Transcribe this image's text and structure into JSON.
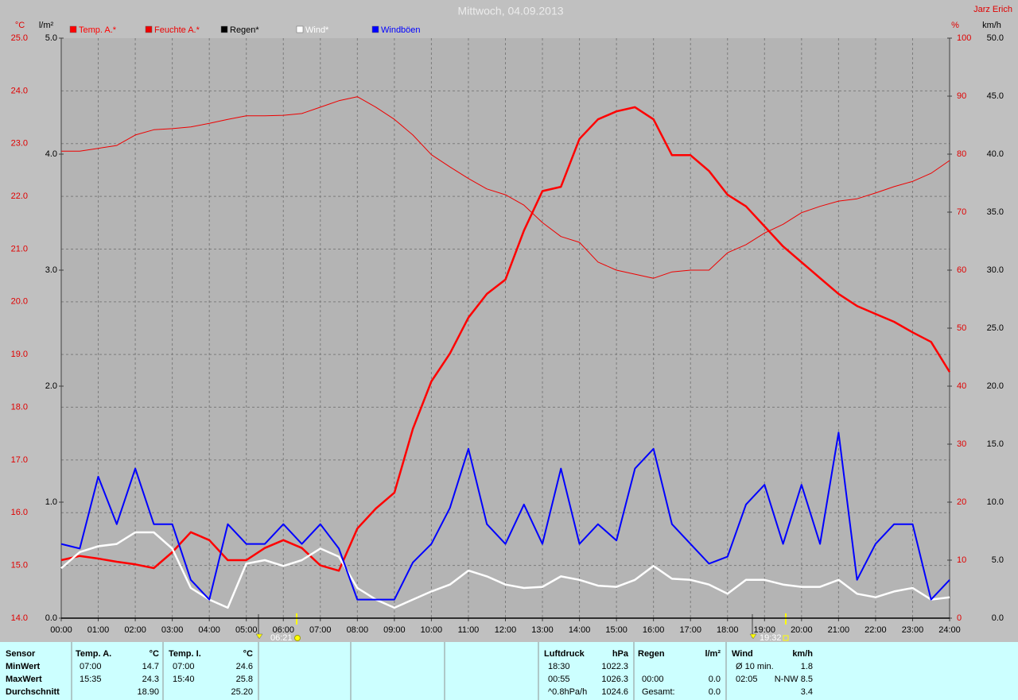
{
  "chart_data": {
    "type": "line",
    "title": "Mittwoch, 04.09.2013",
    "author": "Jarz Erich",
    "y_unit": "°C",
    "y2_unit": "%",
    "y3_unit": "l/m²",
    "y4_unit": "km/h",
    "xlim": [
      0,
      24
    ],
    "xticks": [
      {
        "value": 0,
        "label": "00:00"
      },
      {
        "value": 1,
        "label": "01:00"
      },
      {
        "value": 2,
        "label": "02:00"
      },
      {
        "value": 3,
        "label": "03:00"
      },
      {
        "value": 4,
        "label": "04:00"
      },
      {
        "value": 5,
        "label": "05:00"
      },
      {
        "value": 6,
        "label": "06:00"
      },
      {
        "value": 7,
        "label": "07:00"
      },
      {
        "value": 8,
        "label": "08:00"
      },
      {
        "value": 9,
        "label": "09:00"
      },
      {
        "value": 10,
        "label": "10:00"
      },
      {
        "value": 11,
        "label": "11:00"
      },
      {
        "value": 12,
        "label": "12:00"
      },
      {
        "value": 13,
        "label": "13:00"
      },
      {
        "value": 14,
        "label": "14:00"
      },
      {
        "value": 15,
        "label": "15:00"
      },
      {
        "value": 16,
        "label": "16:00"
      },
      {
        "value": 17,
        "label": "17:00"
      },
      {
        "value": 18,
        "label": "18:00"
      },
      {
        "value": 19,
        "label": "19:00"
      },
      {
        "value": 20,
        "label": "20:00"
      },
      {
        "value": 21,
        "label": "21:00"
      },
      {
        "value": 22,
        "label": "22:00"
      },
      {
        "value": 23,
        "label": "23:00"
      },
      {
        "value": 24,
        "label": "24:00"
      }
    ],
    "ylim": [
      14,
      25
    ],
    "yticks": [
      {
        "value": 14,
        "label": "14.0"
      },
      {
        "value": 15,
        "label": "15.0"
      },
      {
        "value": 16,
        "label": "16.0"
      },
      {
        "value": 17,
        "label": "17.0"
      },
      {
        "value": 18,
        "label": "18.0"
      },
      {
        "value": 19,
        "label": "19.0"
      },
      {
        "value": 20,
        "label": "20.0"
      },
      {
        "value": 21,
        "label": "21.0"
      },
      {
        "value": 22,
        "label": "22.0"
      },
      {
        "value": 23,
        "label": "23.0"
      },
      {
        "value": 24,
        "label": "24.0"
      },
      {
        "value": 25,
        "label": "25.0"
      }
    ],
    "y2lim": [
      0,
      100
    ],
    "y2ticks": [
      0,
      10,
      20,
      30,
      40,
      50,
      60,
      70,
      80,
      90,
      100
    ],
    "y3lim": [
      0,
      5
    ],
    "y3ticks": [
      {
        "value": 0,
        "label": "0.0"
      },
      {
        "value": 1,
        "label": "1.0"
      },
      {
        "value": 2,
        "label": "2.0"
      },
      {
        "value": 3,
        "label": "3.0"
      },
      {
        "value": 4,
        "label": "4.0"
      },
      {
        "value": 5,
        "label": "5.0"
      }
    ],
    "y4lim": [
      0,
      50
    ],
    "y4ticks": [
      {
        "value": 0,
        "label": "0.0"
      },
      {
        "value": 5,
        "label": "5.0"
      },
      {
        "value": 10,
        "label": "10.0"
      },
      {
        "value": 15,
        "label": "15.0"
      },
      {
        "value": 20,
        "label": "20.0"
      },
      {
        "value": 25,
        "label": "25.0"
      },
      {
        "value": 30,
        "label": "30.0"
      },
      {
        "value": 35,
        "label": "35.0"
      },
      {
        "value": 40,
        "label": "40.0"
      },
      {
        "value": 45,
        "label": "45.0"
      },
      {
        "value": 50,
        "label": "50.0"
      }
    ],
    "grid": true,
    "legend": "top",
    "x": [
      0,
      0.5,
      1,
      1.5,
      2,
      2.5,
      3,
      3.5,
      4,
      4.5,
      5,
      5.5,
      6,
      6.5,
      7,
      7.5,
      8,
      8.5,
      9,
      9.5,
      10,
      10.5,
      11,
      11.5,
      12,
      12.5,
      13,
      13.5,
      14,
      14.5,
      15,
      15.5,
      16,
      16.5,
      17,
      17.5,
      18,
      18.5,
      19,
      19.5,
      20,
      20.5,
      21,
      21.5,
      22,
      22.5,
      23,
      23.5,
      24
    ],
    "series": [
      {
        "name": "Temp. A.*",
        "color": "#ff0000",
        "axis": "y",
        "values": [
          15.1,
          15.18,
          15.13,
          15.07,
          15.02,
          14.95,
          15.25,
          15.63,
          15.48,
          15.1,
          15.1,
          15.33,
          15.48,
          15.33,
          15.0,
          14.9,
          15.7,
          16.08,
          16.38,
          17.59,
          18.49,
          19.02,
          19.7,
          20.15,
          20.42,
          21.35,
          22.1,
          22.18,
          23.09,
          23.46,
          23.61,
          23.69,
          23.46,
          22.78,
          22.78,
          22.48,
          22.03,
          21.81,
          21.43,
          21.05,
          20.75,
          20.45,
          20.15,
          19.92,
          19.77,
          19.62,
          19.42,
          19.24,
          18.67
        ]
      },
      {
        "name": "Feuchte A.*",
        "color": "#ee0000",
        "axis": "y2",
        "values": [
          80.5,
          80.5,
          81,
          81.5,
          83.3,
          84.2,
          84.4,
          84.7,
          85.3,
          86,
          86.6,
          86.6,
          86.7,
          87,
          88.1,
          89.2,
          89.9,
          88.1,
          86,
          83.3,
          79.9,
          77.8,
          75.8,
          74,
          73,
          71.2,
          68.2,
          65.8,
          64.8,
          61.4,
          60,
          59.3,
          58.6,
          59.7,
          60,
          60,
          63,
          64.4,
          66.4,
          67.9,
          69.9,
          71,
          71.9,
          72.3,
          73.3,
          74.4,
          75.3,
          76.7,
          78.9
        ]
      },
      {
        "name": "Regen*",
        "color": "#000000",
        "axis": "y3",
        "values": [
          0,
          0,
          0,
          0,
          0,
          0,
          0,
          0,
          0,
          0,
          0,
          0,
          0,
          0,
          0,
          0,
          0,
          0,
          0,
          0,
          0,
          0,
          0,
          0,
          0,
          0,
          0,
          0,
          0,
          0,
          0,
          0,
          0,
          0,
          0,
          0,
          0,
          0,
          0,
          0,
          0,
          0,
          0,
          0,
          0,
          0,
          0,
          0,
          0
        ]
      },
      {
        "name": "Wind*",
        "color": "#ffffff",
        "axis": "y4",
        "values": [
          4.3,
          5.7,
          6.2,
          6.4,
          7.4,
          7.4,
          6,
          2.6,
          1.6,
          0.9,
          4.7,
          5,
          4.5,
          5,
          6,
          5.3,
          2.6,
          1.6,
          0.9,
          1.6,
          2.3,
          2.9,
          4.1,
          3.6,
          2.9,
          2.6,
          2.7,
          3.6,
          3.3,
          2.8,
          2.7,
          3.3,
          4.5,
          3.4,
          3.3,
          2.9,
          2.1,
          3.3,
          3.3,
          2.9,
          2.7,
          2.7,
          3.3,
          2.1,
          1.8,
          2.3,
          2.6,
          1.6,
          1.8
        ]
      },
      {
        "name": "Windböen",
        "color": "#0000ff",
        "axis": "y4",
        "values": [
          6.4,
          6,
          12.2,
          8.1,
          12.9,
          8.1,
          8.1,
          3.3,
          1.6,
          8.1,
          6.4,
          6.4,
          8.1,
          6.4,
          8.1,
          6,
          1.6,
          1.6,
          1.6,
          4.8,
          6.4,
          9.5,
          14.6,
          8.1,
          6.4,
          9.8,
          6.4,
          12.9,
          6.4,
          8.1,
          6.7,
          12.9,
          14.6,
          8.1,
          6.4,
          4.7,
          5.3,
          9.8,
          11.5,
          6.4,
          11.5,
          6.4,
          16,
          3.3,
          6.4,
          8.1,
          8.1,
          1.6,
          3.3
        ]
      }
    ],
    "annotations": {
      "sunrise": "06:21",
      "sunset": "19:32"
    }
  },
  "stats_table": {
    "sensor": {
      "header": "Sensor",
      "rows": [
        "MinWert",
        "MaxWert",
        "Durchschnitt"
      ]
    },
    "groups": [
      {
        "header": [
          "Temp. A.",
          "°C"
        ],
        "rows": [
          [
            "07:00",
            "14.7"
          ],
          [
            "15:35",
            "24.3"
          ],
          [
            null,
            "18.90"
          ]
        ]
      },
      {
        "header": [
          "Temp. I.",
          "°C"
        ],
        "rows": [
          [
            "07:00",
            "24.6"
          ],
          [
            "15:40",
            "25.8"
          ],
          [
            null,
            "25.20"
          ]
        ]
      },
      {
        "header": [
          "Luftdruck",
          "hPa"
        ],
        "rows": [
          [
            "18:30",
            "1022.3"
          ],
          [
            "00:55",
            "1026.3"
          ],
          [
            "^0.8hPa/h",
            "1024.6"
          ]
        ]
      },
      {
        "header": [
          "Regen",
          "l/m²"
        ],
        "rows": [
          [
            null,
            null
          ],
          [
            "00:00",
            "0.0"
          ],
          [
            "Gesamt:",
            "0.0"
          ]
        ]
      },
      {
        "header": [
          "Wind",
          "km/h"
        ],
        "rows": [
          [
            "Ø 10 min.",
            "1.8"
          ],
          [
            "02:05",
            "N-NW 8.5"
          ],
          [
            null,
            "3.4"
          ]
        ]
      }
    ]
  }
}
